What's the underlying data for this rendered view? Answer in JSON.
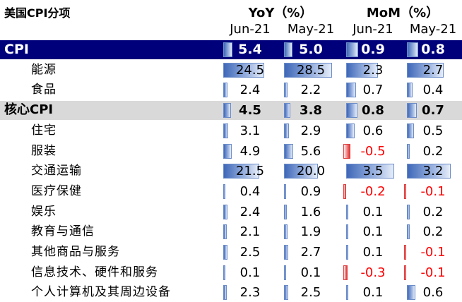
{
  "header": {
    "title": "美国CPI分项",
    "yoy_label": "YoY（%）",
    "mom_label": "MoM（%）",
    "columns": [
      "Jun-21",
      "May-21",
      "Jun-21",
      "May-21"
    ]
  },
  "rows": [
    {
      "label": "CPI",
      "style": "cpi",
      "values": [
        5.4,
        5.0,
        0.9,
        0.8
      ],
      "display": [
        "5.4",
        "5.0",
        "0.9",
        "0.8"
      ]
    },
    {
      "label": "能源",
      "style": "sub",
      "values": [
        24.5,
        28.5,
        2.3,
        2.7
      ],
      "display": [
        "24.5",
        "28.5",
        "2.3",
        "2.7"
      ]
    },
    {
      "label": "食品",
      "style": "sub",
      "values": [
        2.4,
        2.2,
        0.7,
        0.4
      ],
      "display": [
        "2.4",
        "2.2",
        "0.7",
        "0.4"
      ]
    },
    {
      "label": "核心CPI",
      "style": "core",
      "values": [
        4.5,
        3.8,
        0.8,
        0.7
      ],
      "display": [
        "4.5",
        "3.8",
        "0.8",
        "0.7"
      ]
    },
    {
      "label": "住宅",
      "style": "sub",
      "values": [
        3.1,
        2.9,
        0.6,
        0.5
      ],
      "display": [
        "3.1",
        "2.9",
        "0.6",
        "0.5"
      ]
    },
    {
      "label": "服装",
      "style": "sub",
      "values": [
        4.9,
        5.6,
        -0.5,
        0.2
      ],
      "display": [
        "4.9",
        "5.6",
        "-0.5",
        "0.2"
      ]
    },
    {
      "label": "交通运输",
      "style": "sub",
      "values": [
        21.5,
        20.0,
        3.5,
        3.2
      ],
      "display": [
        "21.5",
        "20.0",
        "3.5",
        "3.2"
      ]
    },
    {
      "label": "医疗保健",
      "style": "sub",
      "values": [
        0.4,
        0.9,
        -0.2,
        -0.1
      ],
      "display": [
        "0.4",
        "0.9",
        "-0.2",
        "-0.1"
      ]
    },
    {
      "label": "娱乐",
      "style": "sub",
      "values": [
        2.4,
        1.6,
        0.1,
        0.2
      ],
      "display": [
        "2.4",
        "1.6",
        "0.1",
        "0.2"
      ]
    },
    {
      "label": "教育与通信",
      "style": "sub",
      "values": [
        2.1,
        1.9,
        0.1,
        0.2
      ],
      "display": [
        "2.1",
        "1.9",
        "0.1",
        "0.2"
      ]
    },
    {
      "label": "其他商品与服务",
      "style": "sub",
      "values": [
        2.5,
        2.7,
        0.1,
        -0.1
      ],
      "display": [
        "2.5",
        "2.7",
        "0.1",
        "-0.1"
      ]
    },
    {
      "label": "信息技术、硬件和服务",
      "style": "sub",
      "values": [
        0.1,
        0.1,
        -0.3,
        -0.1
      ],
      "display": [
        "0.1",
        "0.1",
        "-0.3",
        "-0.1"
      ]
    },
    {
      "label": "个人计算机及其周边设备",
      "style": "sub",
      "values": [
        2.3,
        2.5,
        0.1,
        0.6
      ],
      "display": [
        "2.3",
        "2.5",
        "0.1",
        "0.6"
      ]
    }
  ],
  "scale_max": [
    28.5,
    28.5,
    3.5,
    3.5
  ],
  "colors": {
    "cpi_row": "#00007a",
    "core_row": "#d9d9d9",
    "positive_bar": "#4a72c0",
    "negative_bar": "#e03030",
    "negative_text": "#ff0000"
  }
}
